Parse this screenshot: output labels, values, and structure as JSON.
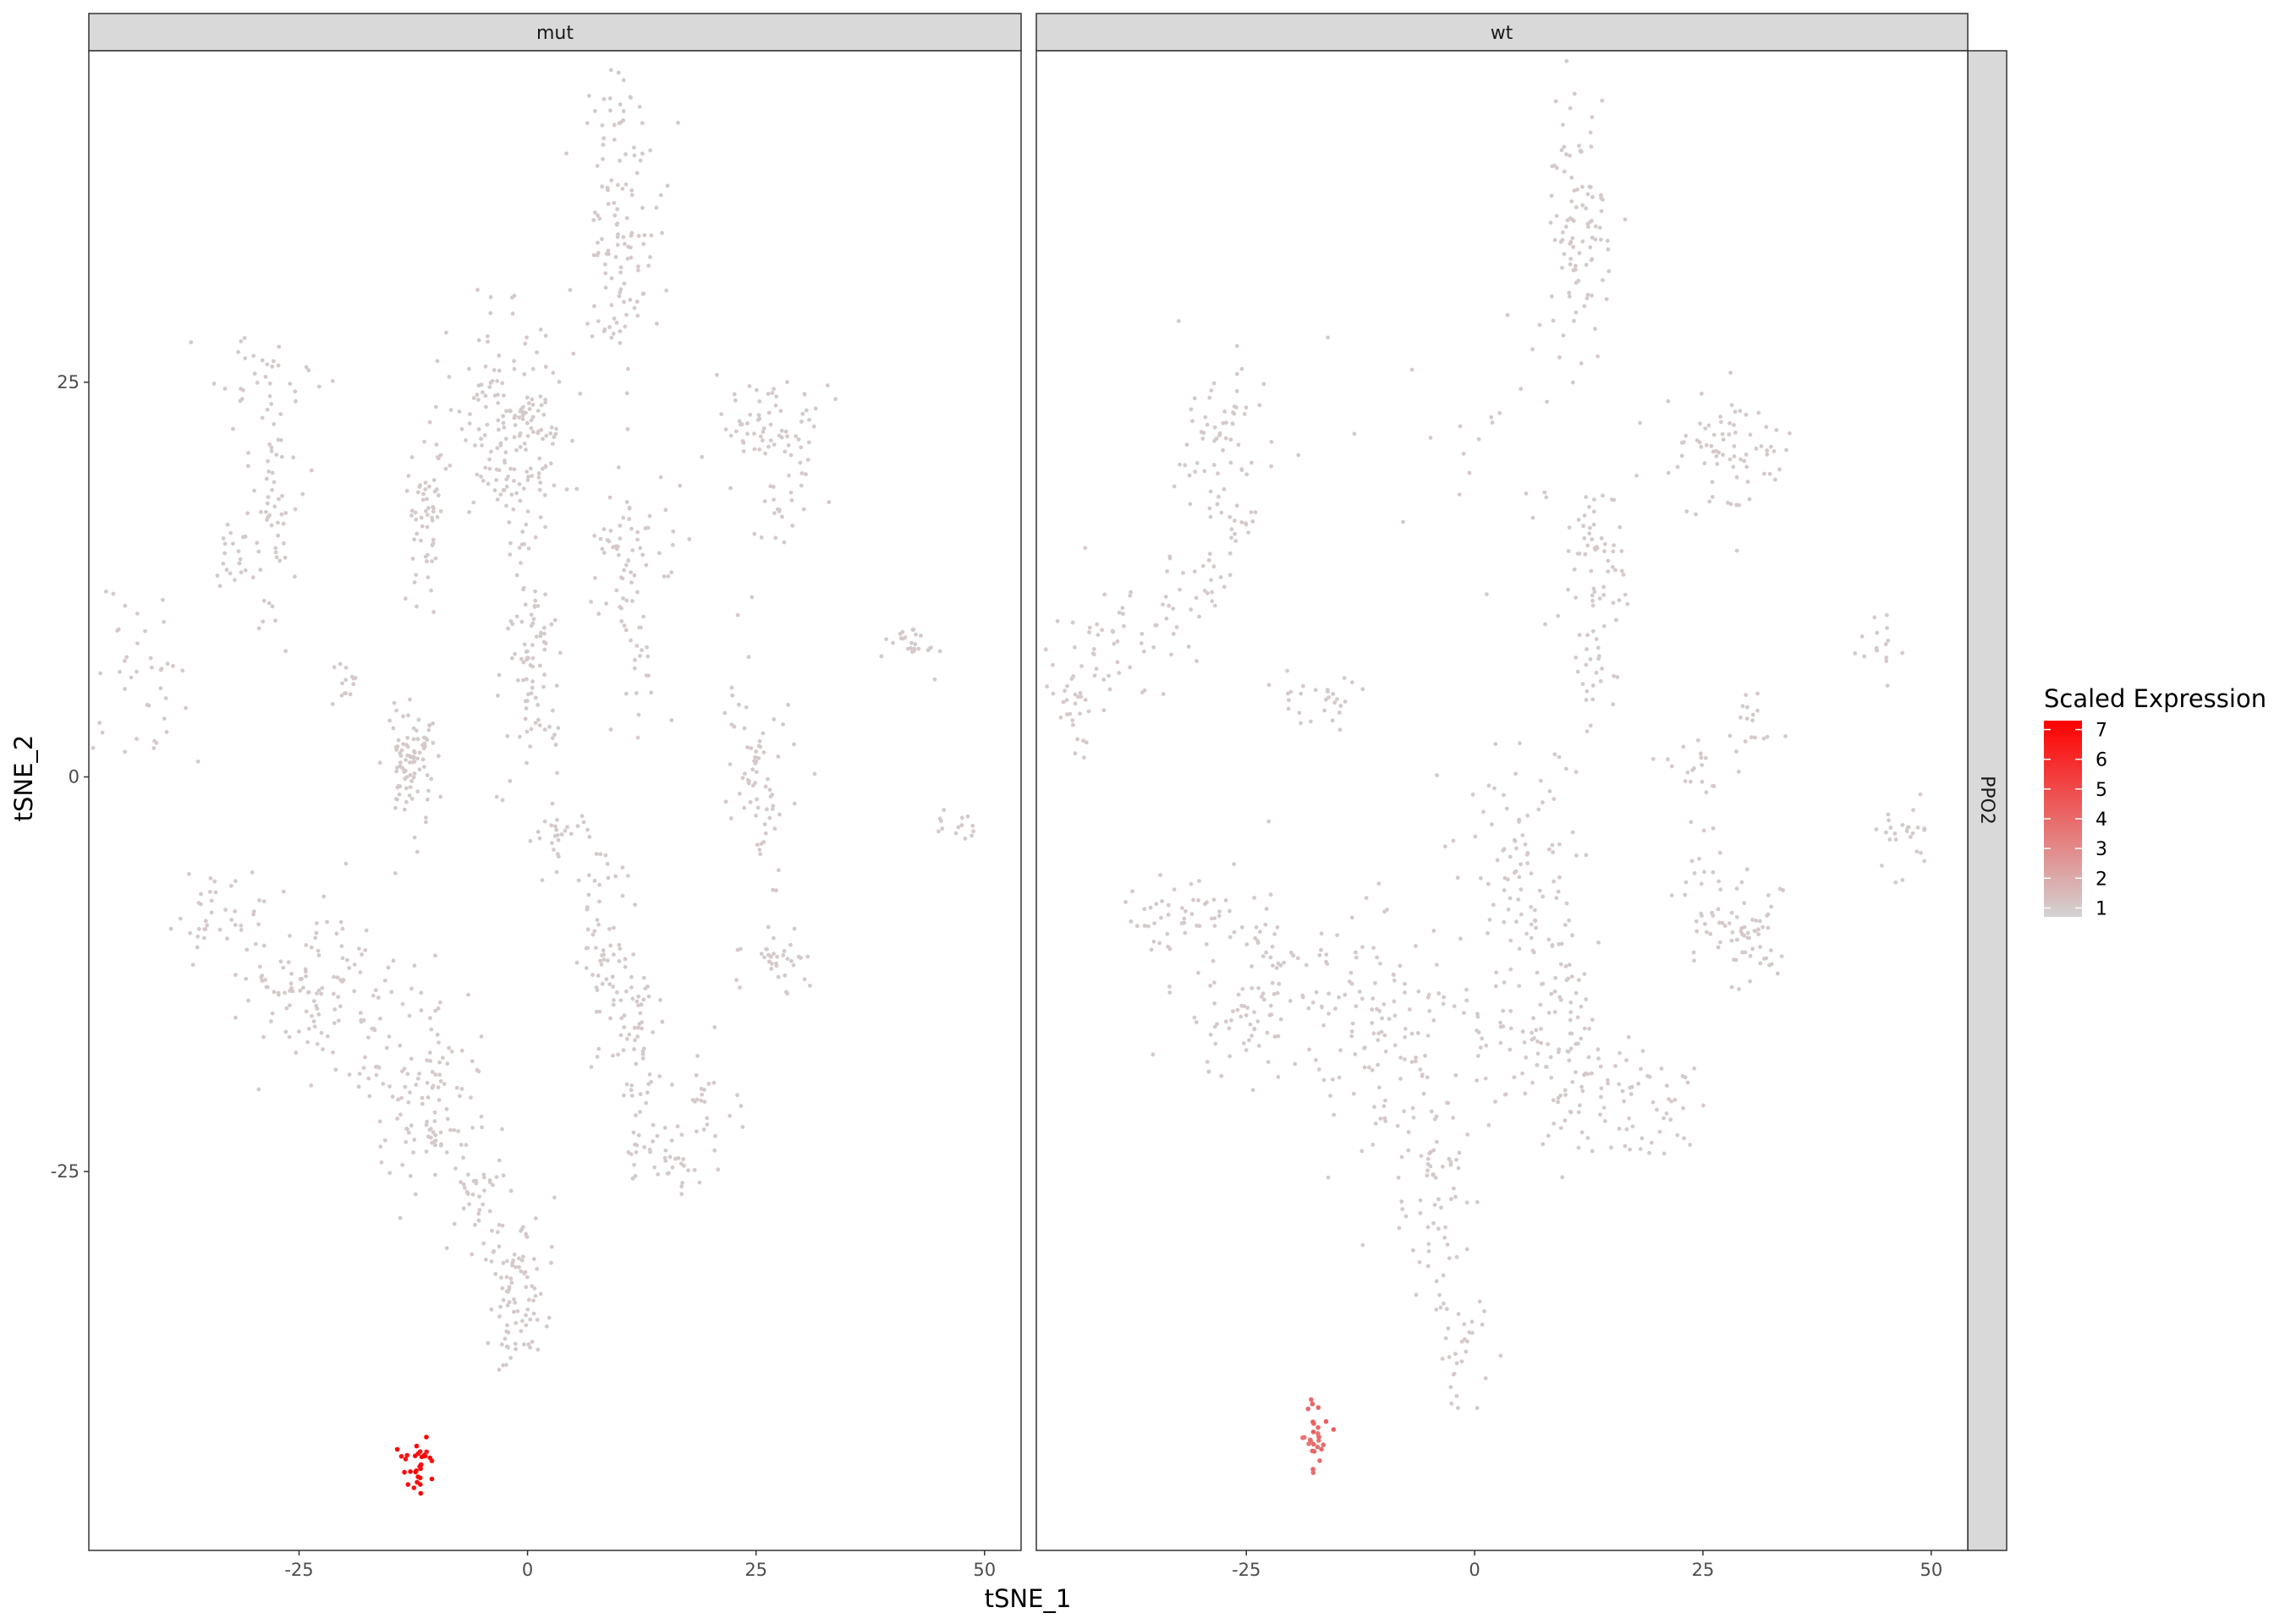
{
  "chart_data": {
    "type": "scatter",
    "title": "",
    "xlabel": "tSNE_1",
    "ylabel": "tSNE_2",
    "xlim": [
      -48,
      54
    ],
    "ylim": [
      -49,
      46
    ],
    "x_ticks": [
      -25,
      0,
      25,
      50
    ],
    "y_ticks": [
      -25,
      0,
      25
    ],
    "x_tick_labels": [
      "-25",
      "0",
      "25",
      "50"
    ],
    "y_tick_labels": [
      "-25",
      "0",
      "25"
    ],
    "grid": false,
    "legend_position": "right",
    "row_strip": "PPO2",
    "color_scale": {
      "title": "Scaled Expression",
      "low_color": "#d3d3d3",
      "high_color": "#ff0000",
      "range": [
        0.7,
        7.3
      ],
      "breaks": [
        1,
        2,
        3,
        4,
        5,
        6,
        7
      ],
      "break_labels": [
        "1",
        "2",
        "3",
        "4",
        "5",
        "6",
        "7"
      ]
    },
    "facets": [
      {
        "name": "mut",
        "clusters": [
          {
            "cx": 10,
            "cy": 35,
            "sx": 2.2,
            "sy": 5,
            "n": 130,
            "value": 1
          },
          {
            "cx": -2,
            "cy": 22,
            "sx": 3.2,
            "sy": 3.2,
            "n": 180,
            "value": 1
          },
          {
            "cx": -29,
            "cy": 25,
            "sx": 3,
            "sy": 1.5,
            "n": 30,
            "value": 1
          },
          {
            "cx": -28,
            "cy": 17,
            "sx": 1.5,
            "sy": 4.5,
            "n": 60,
            "value": 1
          },
          {
            "cx": -11,
            "cy": 16.5,
            "sx": 1.1,
            "sy": 2.5,
            "n": 60,
            "value": 1
          },
          {
            "cx": -32,
            "cy": 14,
            "sx": 1.2,
            "sy": 1.2,
            "n": 20,
            "value": 1
          },
          {
            "cx": -42,
            "cy": 7,
            "sx": 2.5,
            "sy": 3,
            "n": 40,
            "value": 1
          },
          {
            "cx": -13,
            "cy": 1,
            "sx": 1.4,
            "sy": 2,
            "n": 90,
            "value": 1
          },
          {
            "cx": -19.5,
            "cy": 6,
            "sx": 0.8,
            "sy": 0.7,
            "n": 14,
            "value": 1
          },
          {
            "cx": 0.5,
            "cy": 7,
            "sx": 1.8,
            "sy": 3.5,
            "n": 90,
            "value": 1
          },
          {
            "cx": 11,
            "cy": 14,
            "sx": 2.3,
            "sy": 2.2,
            "n": 60,
            "value": 1
          },
          {
            "cx": 26,
            "cy": 22,
            "sx": 3,
            "sy": 2,
            "n": 65,
            "value": 1
          },
          {
            "cx": 28,
            "cy": 18,
            "sx": 1.3,
            "sy": 2.2,
            "n": 25,
            "value": 1
          },
          {
            "cx": 25,
            "cy": 0.5,
            "sx": 2,
            "sy": 3.5,
            "n": 70,
            "value": 1
          },
          {
            "cx": 42,
            "cy": 8.5,
            "sx": 1.5,
            "sy": 0.8,
            "n": 26,
            "value": 1
          },
          {
            "cx": 47,
            "cy": -3,
            "sx": 1.4,
            "sy": 0.6,
            "n": 14,
            "value": 1
          },
          {
            "cx": 12,
            "cy": 7,
            "sx": 1.2,
            "sy": 2.5,
            "n": 25,
            "value": 1
          },
          {
            "cx": 4,
            "cy": -4,
            "sx": 1.8,
            "sy": 1,
            "n": 26,
            "value": 1
          },
          {
            "cx": 8,
            "cy": -9,
            "sx": 1.4,
            "sy": 2.5,
            "n": 40,
            "value": 1
          },
          {
            "cx": -33,
            "cy": -9,
            "sx": 3,
            "sy": 1.4,
            "n": 40,
            "value": 1
          },
          {
            "cx": -22,
            "cy": -14,
            "sx": 4.5,
            "sy": 3,
            "n": 130,
            "value": 1
          },
          {
            "cx": -11,
            "cy": -20,
            "sx": 3,
            "sy": 3.5,
            "n": 110,
            "value": 1
          },
          {
            "cx": -5,
            "cy": -27,
            "sx": 1.4,
            "sy": 2.2,
            "n": 40,
            "value": 1
          },
          {
            "cx": -1,
            "cy": -33,
            "sx": 2,
            "sy": 2.8,
            "n": 90,
            "value": 1
          },
          {
            "cx": 11,
            "cy": -15,
            "sx": 2,
            "sy": 2.5,
            "n": 60,
            "value": 1
          },
          {
            "cx": 13,
            "cy": -21,
            "sx": 1.5,
            "sy": 2,
            "n": 35,
            "value": 1
          },
          {
            "cx": 16,
            "cy": -24,
            "sx": 1.5,
            "sy": 1.2,
            "n": 25,
            "value": 1
          },
          {
            "cx": 20,
            "cy": -21,
            "sx": 1.5,
            "sy": 2.2,
            "n": 22,
            "value": 1
          },
          {
            "cx": 27,
            "cy": -12,
            "sx": 2,
            "sy": 1.3,
            "n": 35,
            "value": 1
          },
          {
            "cx": -12,
            "cy": -43.7,
            "sx": 0.85,
            "sy": 0.85,
            "n": 30,
            "value": 7
          }
        ]
      },
      {
        "name": "wt",
        "clusters": [
          {
            "cx": 11.5,
            "cy": 35,
            "sx": 1.8,
            "sy": 4.5,
            "n": 100,
            "value": 1
          },
          {
            "cx": -28,
            "cy": 22,
            "sx": 2.5,
            "sy": 2.2,
            "n": 55,
            "value": 1
          },
          {
            "cx": -26,
            "cy": 17,
            "sx": 1.5,
            "sy": 2,
            "n": 25,
            "value": 1
          },
          {
            "cx": -40,
            "cy": 8,
            "sx": 3.5,
            "sy": 2.5,
            "n": 50,
            "value": 1
          },
          {
            "cx": -44,
            "cy": 4,
            "sx": 1.3,
            "sy": 1.5,
            "n": 22,
            "value": 1
          },
          {
            "cx": -31,
            "cy": 12,
            "sx": 2.5,
            "sy": 2,
            "n": 30,
            "value": 1
          },
          {
            "cx": -17,
            "cy": 5,
            "sx": 2.5,
            "sy": 1.2,
            "n": 28,
            "value": 1
          },
          {
            "cx": 13,
            "cy": 14,
            "sx": 2,
            "sy": 2.2,
            "n": 60,
            "value": 1
          },
          {
            "cx": 13,
            "cy": 7,
            "sx": 1.2,
            "sy": 1.8,
            "n": 22,
            "value": 1
          },
          {
            "cx": 27,
            "cy": 21,
            "sx": 3,
            "sy": 2.2,
            "n": 75,
            "value": 1
          },
          {
            "cx": 30,
            "cy": 3,
            "sx": 1.2,
            "sy": 1,
            "n": 18,
            "value": 1
          },
          {
            "cx": 24,
            "cy": 1,
            "sx": 2,
            "sy": 1.2,
            "n": 18,
            "value": 1
          },
          {
            "cx": 47,
            "cy": -4,
            "sx": 1.5,
            "sy": 1.5,
            "n": 26,
            "value": 1
          },
          {
            "cx": 44,
            "cy": 8.5,
            "sx": 1.2,
            "sy": 1,
            "n": 15,
            "value": 1
          },
          {
            "cx": 5,
            "cy": -5,
            "sx": 3,
            "sy": 3.5,
            "n": 90,
            "value": 1
          },
          {
            "cx": 30,
            "cy": -10,
            "sx": 2,
            "sy": 1.5,
            "n": 60,
            "value": 1
          },
          {
            "cx": 25,
            "cy": -7,
            "sx": 1.5,
            "sy": 2.5,
            "n": 25,
            "value": 1
          },
          {
            "cx": -33,
            "cy": -9,
            "sx": 3,
            "sy": 1.4,
            "n": 40,
            "value": 1
          },
          {
            "cx": -24,
            "cy": -13,
            "sx": 4,
            "sy": 3,
            "n": 110,
            "value": 1
          },
          {
            "cx": -10,
            "cy": -16,
            "sx": 4,
            "sy": 4,
            "n": 120,
            "value": 1
          },
          {
            "cx": -4,
            "cy": -26,
            "sx": 2,
            "sy": 3,
            "n": 60,
            "value": 1
          },
          {
            "cx": -2,
            "cy": -35,
            "sx": 1.5,
            "sy": 2,
            "n": 35,
            "value": 1
          },
          {
            "cx": 10,
            "cy": -16,
            "sx": 2.5,
            "sy": 3.5,
            "n": 100,
            "value": 1
          },
          {
            "cx": 18,
            "cy": -21,
            "sx": 3,
            "sy": 2,
            "n": 55,
            "value": 1
          },
          {
            "cx": 2,
            "cy": -17,
            "sx": 1.5,
            "sy": 3,
            "n": 25,
            "value": 1
          },
          {
            "cx": 0,
            "cy": 20,
            "sx": 8,
            "sy": 5,
            "n": 25,
            "value": 1
          },
          {
            "cx": -17.5,
            "cy": -42,
            "sx": 0.9,
            "sy": 1.0,
            "n": 28,
            "value": 4
          }
        ]
      }
    ]
  }
}
